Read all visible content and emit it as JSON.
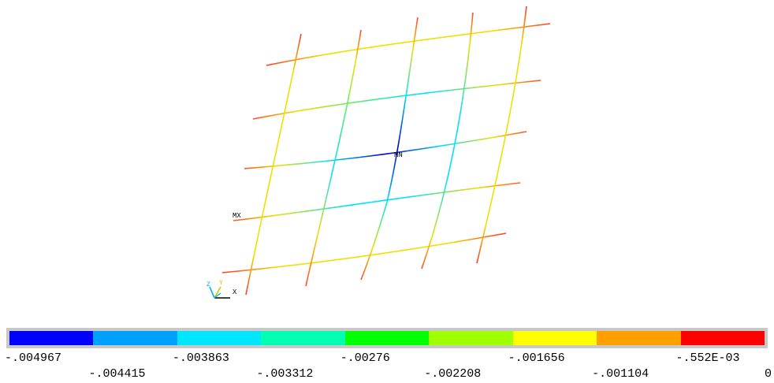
{
  "plot": {
    "min_label": "MN",
    "max_label": "MX",
    "axis_z": "Z",
    "axis_y": "Y",
    "axis_x": "X"
  },
  "legend": {
    "colors": [
      "#0000ff",
      "#00a0ff",
      "#00e6ff",
      "#00ffb0",
      "#00ff00",
      "#a0ff00",
      "#ffff00",
      "#ffa000",
      "#ff0000"
    ],
    "labels_top": [
      "-.004967",
      "-.003863",
      "-.00276",
      "-.001656",
      "-.552E-03"
    ],
    "labels_bottom": [
      "-.004415",
      "-.003312",
      "-.002208",
      "-.001104",
      "0"
    ]
  },
  "mesh": {
    "horizontal_lines": [
      {
        "name": "h-line-1",
        "color": "#ff3a2a",
        "mid": "#f0e000"
      },
      {
        "name": "h-line-2",
        "color": "#ff5a2a",
        "mid": "#40f080"
      },
      {
        "name": "h-line-3",
        "color": "#ff6a2a",
        "mid": "#0000c0"
      },
      {
        "name": "h-line-4",
        "color": "#ff7a2a",
        "mid": "#00e0ff"
      },
      {
        "name": "h-line-5",
        "color": "#ff3a2a",
        "mid": "#f0e000"
      }
    ],
    "vertical_lines": [
      {
        "name": "v-line-1",
        "color": "#ff3a2a",
        "mid": "#f0e000"
      },
      {
        "name": "v-line-2",
        "color": "#ff5a2a",
        "mid": "#00e0ff"
      },
      {
        "name": "v-line-3",
        "color": "#ff6a2a",
        "mid": "#0000c0"
      },
      {
        "name": "v-line-4",
        "color": "#ff5a2a",
        "mid": "#00e0ff"
      },
      {
        "name": "v-line-5",
        "color": "#ff3a2a",
        "mid": "#f0e000"
      }
    ]
  }
}
